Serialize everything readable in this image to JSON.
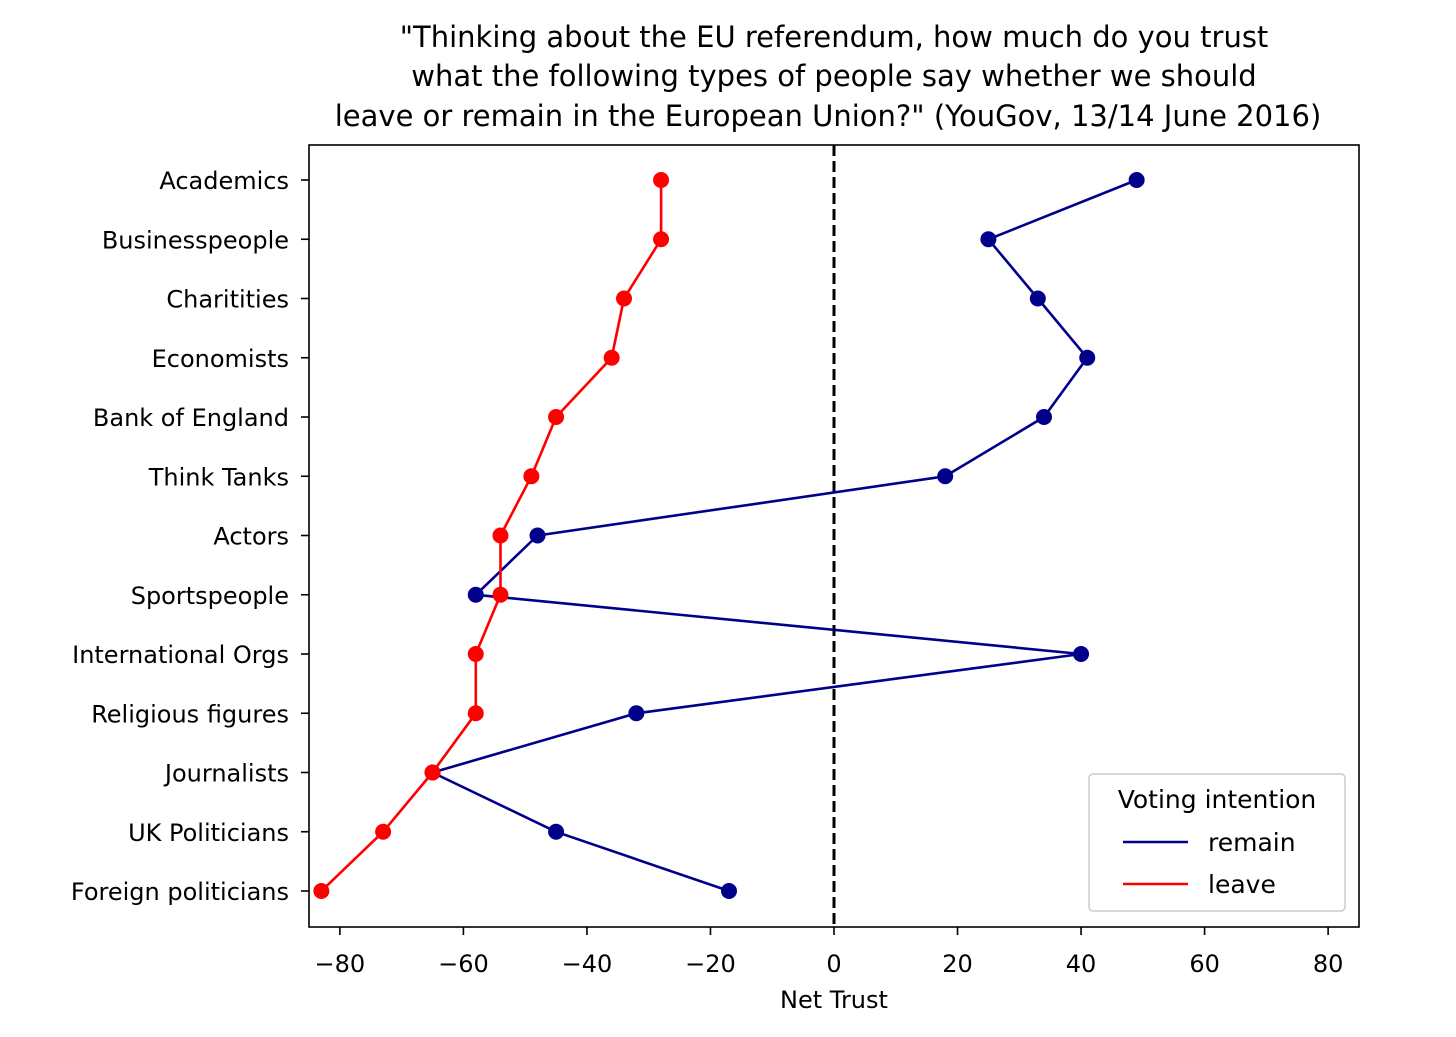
{
  "chart_data": {
    "type": "line",
    "title_lines": [
      "\"Thinking about the EU referendum, how much do you trust",
      "what the following types of people say whether we should",
      "leave or remain in the European Union?\" (YouGov, 13/14 June 2016)"
    ],
    "xlabel": "Net Trust",
    "ylabel": "",
    "xlim": [
      -85,
      85
    ],
    "xticks": [
      -80,
      -60,
      -40,
      -20,
      0,
      20,
      40,
      60,
      80
    ],
    "xtick_labels": [
      "−80",
      "−60",
      "−40",
      "−20",
      "0",
      "20",
      "40",
      "60",
      "80"
    ],
    "reference_line_x": 0,
    "categories": [
      "Academics",
      "Businesspeople",
      "Charitities",
      "Economists",
      "Bank of England",
      "Think Tanks",
      "Actors",
      "Sportspeople",
      "International Orgs",
      "Religious figures",
      "Journalists",
      "UK Politicians",
      "Foreign politicians"
    ],
    "series": [
      {
        "name": "remain",
        "color": "#00008b",
        "values": [
          49,
          25,
          33,
          41,
          34,
          18,
          -48,
          -58,
          40,
          -32,
          -65,
          -45,
          -17
        ]
      },
      {
        "name": "leave",
        "color": "#ff0000",
        "values": [
          -28,
          -28,
          -34,
          -36,
          -45,
          -49,
          -54,
          -54,
          -58,
          -58,
          -65,
          -73,
          -83
        ]
      }
    ],
    "legend_title": "Voting intention",
    "legend_position": "lower-right"
  }
}
